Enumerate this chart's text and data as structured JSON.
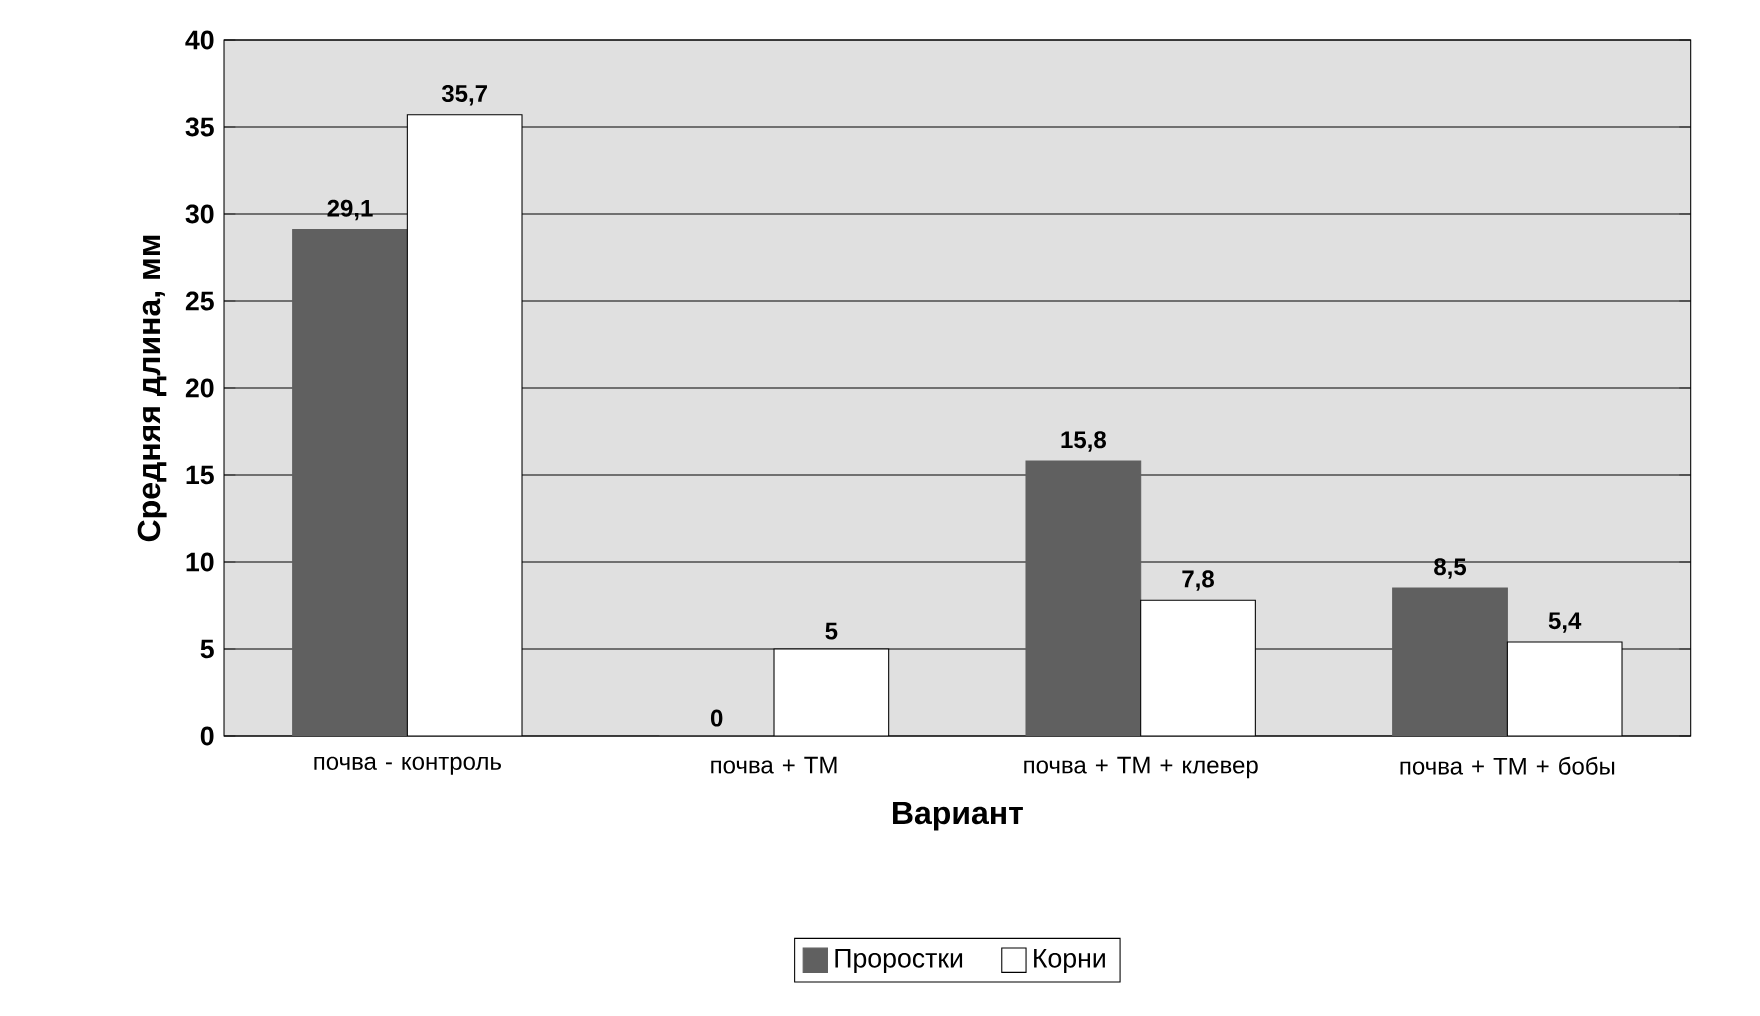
{
  "chart_data": {
    "type": "bar",
    "xlabel": "Вариант",
    "ylabel": "Средняя длина, мм",
    "categories": [
      "почва - контроль",
      "почва + ТМ",
      "почва + ТМ + клевер",
      "почва + ТМ + бобы"
    ],
    "series": [
      {
        "name": "Проростки",
        "color": "#606060",
        "values": [
          29.1,
          0,
          15.8,
          8.5
        ],
        "value_labels": [
          "29,1",
          "0",
          "15,8",
          "8,5"
        ]
      },
      {
        "name": "Корни",
        "color": "#ffffff",
        "values": [
          35.7,
          5,
          7.8,
          5.4
        ],
        "value_labels": [
          "35,7",
          "5",
          "7,8",
          "5,4"
        ]
      }
    ],
    "ylim": [
      0,
      40
    ],
    "yticks": [
      0,
      5,
      10,
      15,
      20,
      25,
      30,
      35,
      40
    ],
    "grid": "y",
    "legend": "bottom"
  }
}
